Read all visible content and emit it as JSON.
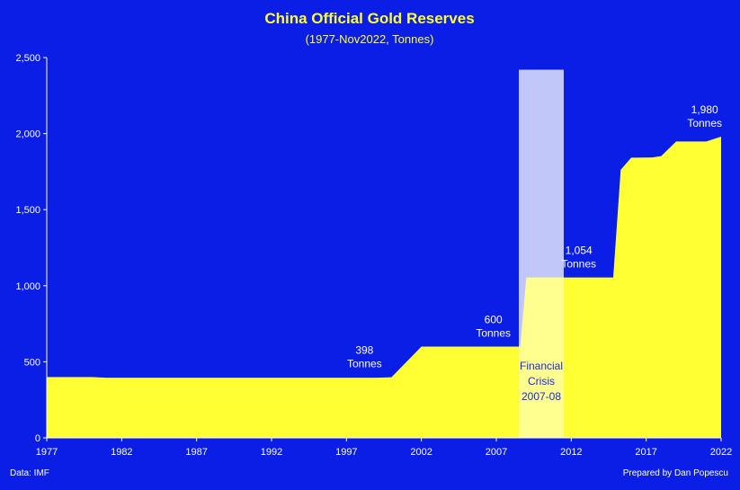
{
  "chart_data": {
    "type": "area",
    "title": "China Official Gold Reserves",
    "subtitle": "(1977-Nov2022, Tonnes)",
    "xlabel": "",
    "ylabel": "",
    "xlim": [
      1977,
      2022
    ],
    "ylim": [
      0,
      2500
    ],
    "x_ticks": [
      "1977",
      "1982",
      "1987",
      "1992",
      "1997",
      "2002",
      "2007",
      "2012",
      "2017",
      "2022"
    ],
    "y_ticks": [
      "0",
      "500",
      "1,000",
      "1,500",
      "2,000",
      "2,500"
    ],
    "grid": false,
    "colors": {
      "background": "#0a1ee6",
      "area": "#ffff33",
      "title": "#ffff33",
      "text": "#ffffff",
      "shade": "#ffffff"
    },
    "series": [
      {
        "points": [
          [
            1977,
            400
          ],
          [
            1980,
            400
          ],
          [
            1981,
            395
          ],
          [
            1999,
            395
          ],
          [
            2000,
            398
          ],
          [
            2002,
            600
          ],
          [
            2008.6,
            600
          ],
          [
            2009,
            1054
          ],
          [
            2014.8,
            1054
          ],
          [
            2015.3,
            1762
          ],
          [
            2016,
            1842
          ],
          [
            2017.4,
            1843
          ],
          [
            2018,
            1852
          ],
          [
            2019,
            1948
          ],
          [
            2021,
            1948
          ],
          [
            2022,
            1980
          ]
        ]
      }
    ],
    "shaded_region": {
      "x": [
        2008.5,
        2011.5
      ],
      "y": [
        0,
        2420
      ],
      "label_lines": [
        "Financial",
        "Crisis",
        "2007-08"
      ]
    },
    "annotations": [
      {
        "lines": [
          "398",
          "Tonnes"
        ],
        "x": 1998.2,
        "y": 398
      },
      {
        "lines": [
          "600",
          "Tonnes"
        ],
        "x": 2006.8,
        "y": 600
      },
      {
        "lines": [
          "1,054",
          "Tonnes"
        ],
        "x": 2012.5,
        "y": 1054
      },
      {
        "lines": [
          "1,980",
          "Tonnes"
        ],
        "x": 2020.9,
        "y": 1980
      }
    ],
    "source": "Data: IMF",
    "credit": "Prepared by Dan Popescu"
  }
}
